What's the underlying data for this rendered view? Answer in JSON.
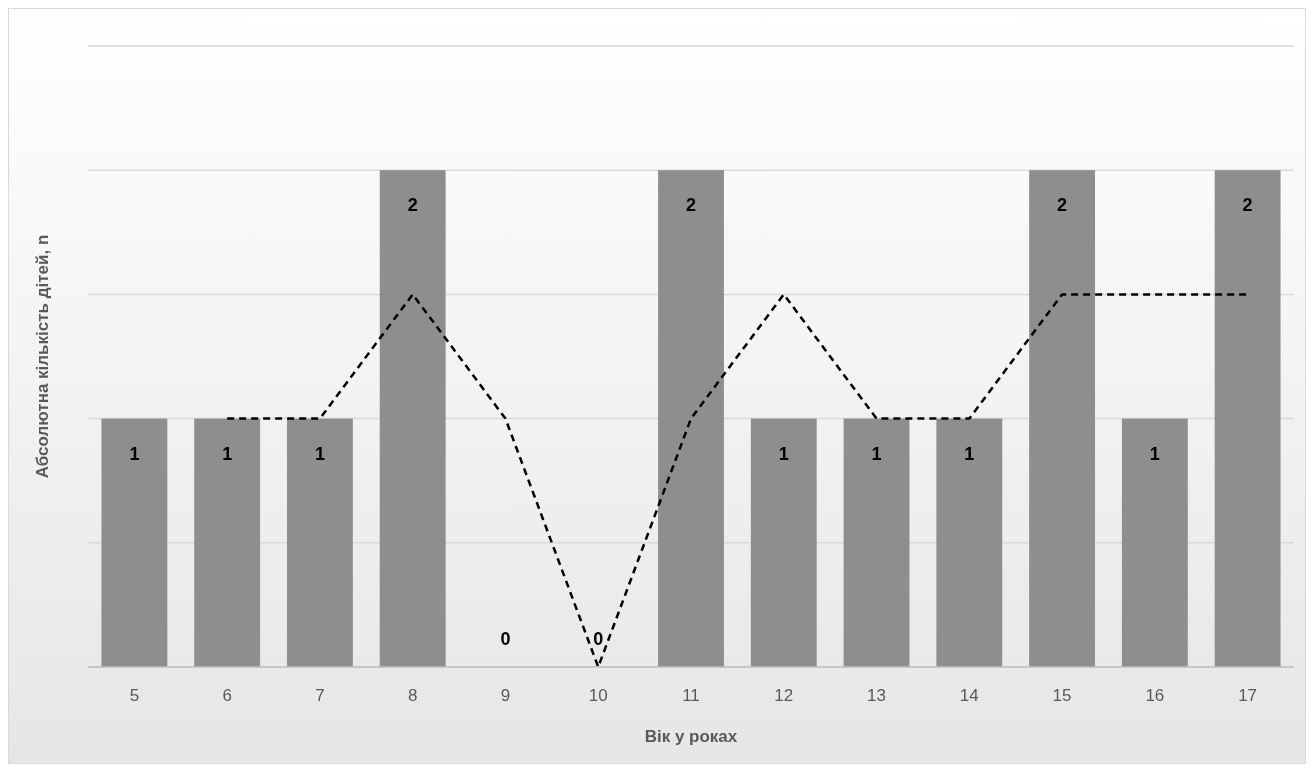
{
  "chart_data": {
    "type": "bar",
    "xlabel": "Вік у роках",
    "ylabel": "Абсолютна кількість дітей, n",
    "categories": [
      "5",
      "6",
      "7",
      "8",
      "9",
      "10",
      "11",
      "12",
      "13",
      "14",
      "15",
      "16",
      "17"
    ],
    "series": [
      {
        "color": "#8e8e8e",
        "values": [
          1,
          1,
          1,
          2,
          0,
          0,
          2,
          1,
          1,
          1,
          2,
          1,
          2
        ],
        "value_labels": [
          "1",
          "1",
          "1",
          "2",
          "0",
          "0",
          "2",
          "1",
          "1",
          "1",
          "2",
          "1",
          "2"
        ]
      },
      {
        "type": "line",
        "color": "#000000",
        "line_style": "dashed",
        "marker": "none",
        "values": [
          null,
          1,
          1,
          1.5,
          1,
          0,
          1,
          1.5,
          1,
          1,
          1.5,
          1.5,
          1.5
        ]
      }
    ],
    "ylim": [
      0,
      2.5
    ],
    "yticks": [
      {
        "value": 0,
        "label": null
      },
      {
        "value": 0.5,
        "label": null
      },
      {
        "value": 1,
        "label": null
      },
      {
        "value": 1.5,
        "label": null
      },
      {
        "value": 2,
        "label": null
      },
      {
        "value": 2.5,
        "label": null
      }
    ],
    "tick_labels": "x",
    "grid": "y"
  }
}
